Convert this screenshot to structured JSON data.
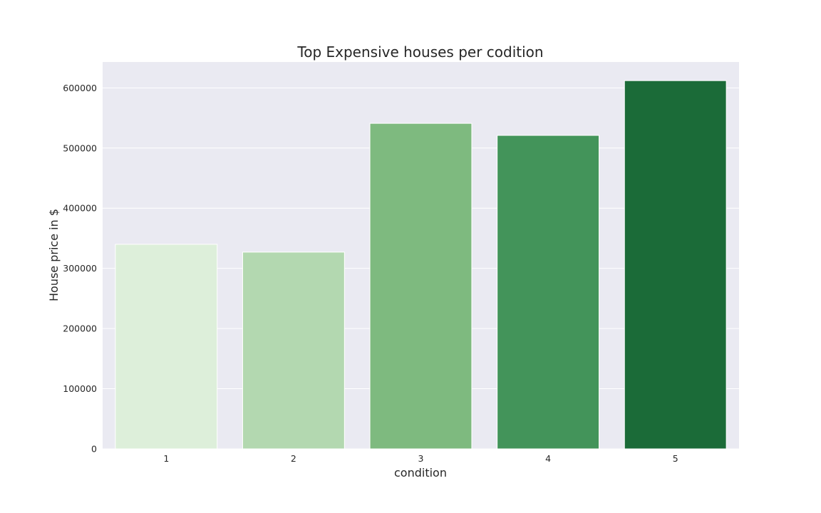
{
  "chart_data": {
    "type": "bar",
    "title": "Top Expensive houses per codition",
    "xlabel": "condition",
    "ylabel": "House price in $",
    "categories": [
      "1",
      "2",
      "3",
      "4",
      "5"
    ],
    "values": [
      340000,
      327000,
      541000,
      521000,
      612000
    ],
    "bar_colors": [
      "#ddefda",
      "#b3d8b0",
      "#7eba7f",
      "#43945a",
      "#1b6b38"
    ],
    "ylim": [
      0,
      643000
    ],
    "yticks": [
      0,
      100000,
      200000,
      300000,
      400000,
      500000,
      600000
    ],
    "ytick_labels": [
      "0",
      "100000",
      "200000",
      "300000",
      "400000",
      "500000",
      "600000"
    ],
    "grid": true,
    "legend": "none",
    "plot_background": "#eaeaf2",
    "grid_color": "#ffffff",
    "text_color": "#262626"
  }
}
